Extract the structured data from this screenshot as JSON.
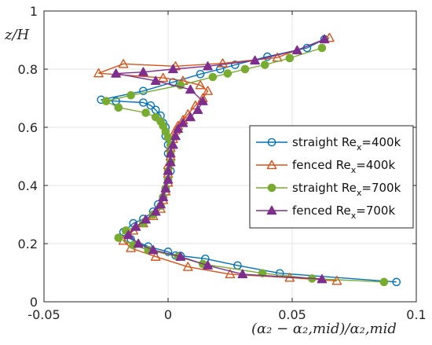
{
  "chart_data": {
    "type": "line",
    "xlabel": "(α₂ − α₂,mid)/α₂,mid",
    "ylabel": "z/H",
    "xlim": [
      -0.05,
      0.1
    ],
    "ylim": [
      0,
      1
    ],
    "xticks": [
      -0.05,
      0,
      0.05,
      0.1
    ],
    "xtick_labels": [
      "-0.05",
      "0",
      "0.05",
      "0.1"
    ],
    "yticks": [
      0,
      0.2,
      0.4,
      0.6,
      0.8,
      1
    ],
    "ytick_labels": [
      "0",
      "0.2",
      "0.4",
      "0.6",
      "0.8",
      "1"
    ],
    "grid": true,
    "legend_position": "right",
    "series": [
      {
        "name": "straight Rex=400k",
        "legend_main": "straight Re",
        "legend_sub": "x",
        "legend_tail": "=400k",
        "color": "#0072BD",
        "marker": "circle-open",
        "x": [
          0.092,
          0.045,
          0.028,
          0.015,
          0.005,
          0.003,
          0.0,
          -0.008,
          -0.015,
          -0.018,
          -0.014,
          -0.01,
          -0.006,
          -0.004,
          -0.002,
          -0.001,
          0.0,
          0.001,
          0.001,
          0.0,
          0.0,
          -0.001,
          -0.001,
          -0.002,
          -0.003,
          -0.005,
          -0.007,
          -0.01,
          -0.021,
          -0.027,
          -0.01,
          0.002,
          0.013,
          0.021,
          0.027,
          0.04,
          0.056,
          0.063
        ],
        "y": [
          0.068,
          0.098,
          0.125,
          0.148,
          0.158,
          0.159,
          0.172,
          0.19,
          0.215,
          0.24,
          0.27,
          0.285,
          0.31,
          0.335,
          0.36,
          0.39,
          0.42,
          0.45,
          0.48,
          0.51,
          0.54,
          0.57,
          0.6,
          0.615,
          0.64,
          0.66,
          0.675,
          0.685,
          0.69,
          0.695,
          0.725,
          0.755,
          0.783,
          0.8,
          0.815,
          0.843,
          0.873,
          0.903
        ]
      },
      {
        "name": "fenced Rex=400k",
        "legend_main": "fenced Re",
        "legend_sub": "x",
        "legend_tail": "=400k",
        "color": "#D95319",
        "marker": "triangle-open",
        "x": [
          0.068,
          0.049,
          0.025,
          0.008,
          -0.005,
          -0.015,
          -0.018,
          -0.014,
          -0.01,
          -0.006,
          -0.003,
          -0.002,
          -0.001,
          0.0,
          0.0,
          0.0,
          0.001,
          0.001,
          0.002,
          0.003,
          0.004,
          0.006,
          0.008,
          0.011,
          0.014,
          0.016,
          0.013,
          0.006,
          -0.002,
          -0.028,
          -0.018,
          0.003,
          0.022,
          0.044,
          0.065
        ],
        "y": [
          0.072,
          0.083,
          0.095,
          0.12,
          0.155,
          0.185,
          0.21,
          0.245,
          0.27,
          0.295,
          0.32,
          0.35,
          0.38,
          0.41,
          0.44,
          0.47,
          0.5,
          0.53,
          0.56,
          0.59,
          0.605,
          0.625,
          0.645,
          0.675,
          0.7,
          0.725,
          0.745,
          0.76,
          0.77,
          0.786,
          0.818,
          0.81,
          0.82,
          0.84,
          0.908
        ]
      },
      {
        "name": "straight Rex=700k",
        "legend_main": "straight Re",
        "legend_sub": "x",
        "legend_tail": "=700k",
        "color": "#77AC30",
        "marker": "circle-filled",
        "x": [
          0.087,
          0.058,
          0.038,
          0.014,
          0.004,
          -0.008,
          -0.014,
          -0.02,
          -0.017,
          -0.01,
          -0.006,
          -0.003,
          -0.002,
          -0.001,
          0.0,
          0.0,
          0.001,
          0.001,
          0.001,
          0.0,
          -0.001,
          -0.002,
          -0.003,
          -0.005,
          -0.009,
          -0.02,
          -0.025,
          -0.015,
          0.005,
          0.018,
          0.024,
          0.031,
          0.039,
          0.049,
          0.062
        ],
        "y": [
          0.068,
          0.08,
          0.098,
          0.13,
          0.155,
          0.178,
          0.195,
          0.22,
          0.245,
          0.27,
          0.3,
          0.33,
          0.36,
          0.39,
          0.42,
          0.45,
          0.48,
          0.51,
          0.54,
          0.565,
          0.585,
          0.605,
          0.62,
          0.635,
          0.65,
          0.668,
          0.69,
          0.71,
          0.745,
          0.773,
          0.785,
          0.8,
          0.815,
          0.838,
          0.873
        ]
      },
      {
        "name": "fenced Rex=700k",
        "legend_main": "fenced Re",
        "legend_sub": "x",
        "legend_tail": "=700k",
        "color": "#7E2F8E",
        "marker": "triangle-filled",
        "x": [
          0.062,
          0.03,
          0.016,
          0.005,
          -0.006,
          -0.012,
          -0.016,
          -0.013,
          -0.009,
          -0.005,
          -0.003,
          -0.002,
          -0.001,
          0.0,
          0.0,
          0.001,
          0.001,
          0.002,
          0.003,
          0.004,
          0.006,
          0.009,
          0.012,
          0.014,
          0.009,
          -0.005,
          -0.021,
          -0.01,
          0.002,
          0.016,
          0.035,
          0.052,
          0.063
        ],
        "y": [
          0.078,
          0.095,
          0.125,
          0.155,
          0.178,
          0.2,
          0.23,
          0.258,
          0.283,
          0.31,
          0.335,
          0.36,
          0.39,
          0.42,
          0.45,
          0.48,
          0.51,
          0.54,
          0.57,
          0.595,
          0.615,
          0.635,
          0.66,
          0.69,
          0.73,
          0.76,
          0.785,
          0.79,
          0.8,
          0.81,
          0.83,
          0.865,
          0.903
        ]
      }
    ]
  }
}
